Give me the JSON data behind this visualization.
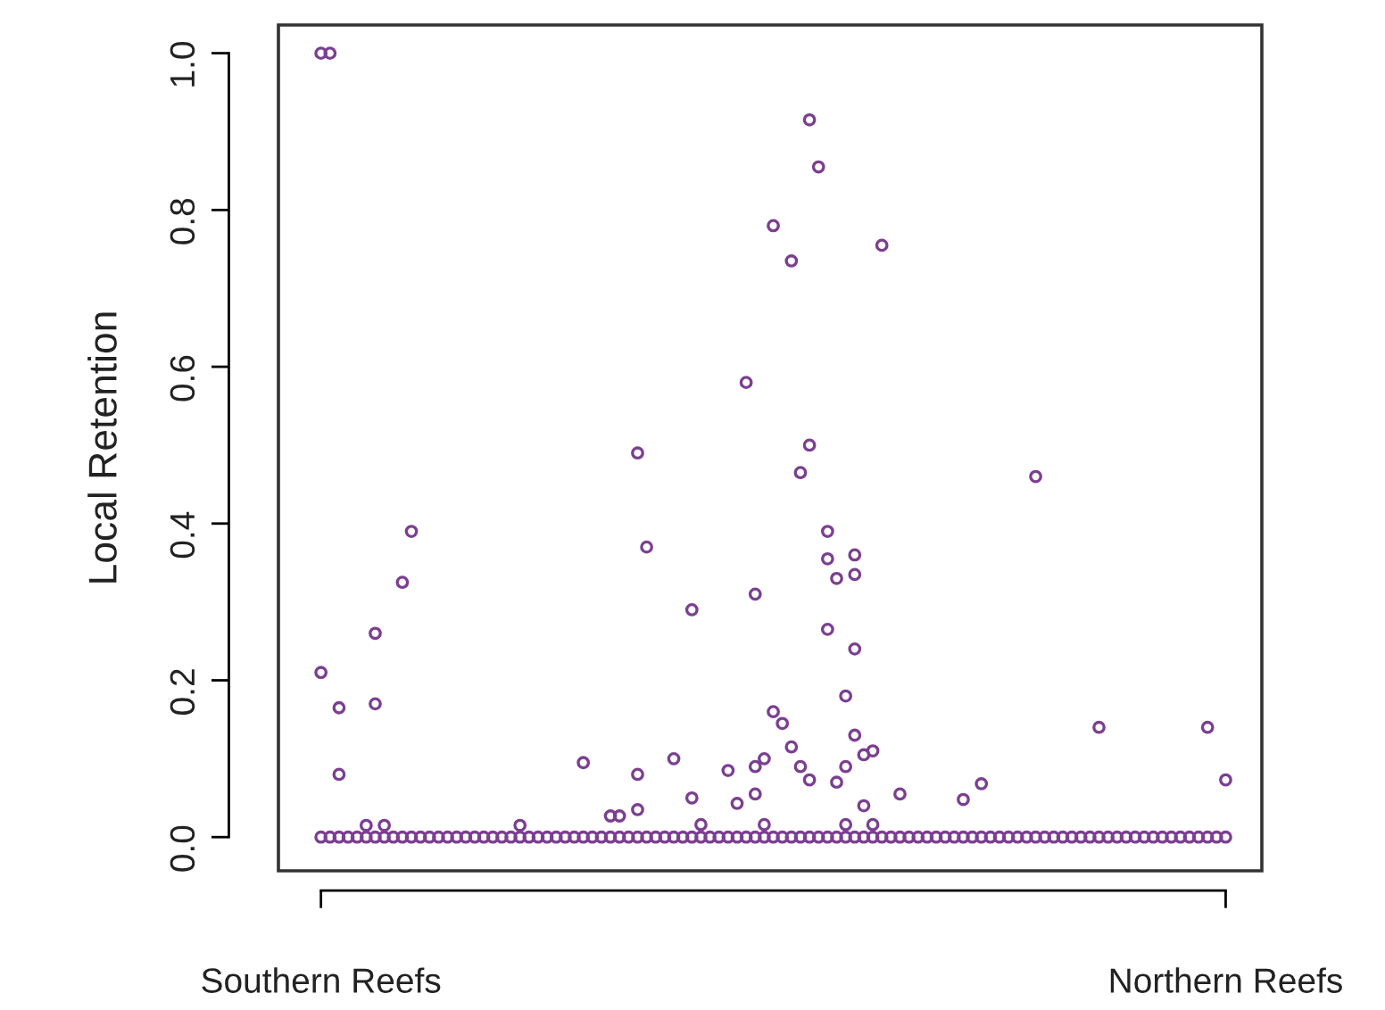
{
  "chart_data": {
    "type": "scatter",
    "ylabel": "Local Retention",
    "categories": [
      "Southern Reefs",
      null,
      null,
      null,
      null,
      null,
      null,
      null,
      null,
      null,
      null,
      null,
      null,
      null,
      null,
      null,
      null,
      null,
      null,
      null,
      null,
      null,
      null,
      null,
      null,
      null,
      null,
      null,
      null,
      null,
      null,
      null,
      null,
      null,
      null,
      null,
      null,
      null,
      null,
      null,
      null,
      null,
      null,
      null,
      null,
      null,
      null,
      null,
      null,
      null,
      null,
      null,
      null,
      null,
      null,
      null,
      null,
      null,
      null,
      null,
      null,
      null,
      null,
      null,
      null,
      null,
      null,
      null,
      null,
      null,
      null,
      null,
      null,
      null,
      null,
      null,
      null,
      null,
      null,
      null,
      null,
      null,
      null,
      null,
      null,
      null,
      null,
      null,
      null,
      null,
      null,
      null,
      null,
      null,
      null,
      null,
      null,
      null,
      null,
      null,
      "Northern Reefs"
    ],
    "ylim": [
      -0.043,
      1.036
    ],
    "yticks": [
      {
        "value": 0,
        "label": "0.0"
      },
      {
        "value": 0.2,
        "label": "0.2"
      },
      {
        "value": 0.4,
        "label": "0.4"
      },
      {
        "value": 0.6,
        "label": "0.6"
      },
      {
        "value": 0.8,
        "label": "0.8"
      },
      {
        "value": 1,
        "label": "1.0"
      }
    ],
    "marker": "circle",
    "series": [
      {
        "color": "#7b3f91",
        "values": [
          0,
          0,
          0,
          0,
          0,
          0,
          0,
          0,
          0,
          0,
          0,
          0,
          0,
          0,
          0,
          0,
          0,
          0,
          0,
          0,
          0,
          0,
          0,
          0,
          0,
          0,
          0,
          0,
          0,
          0,
          0,
          0,
          0,
          0,
          0,
          0,
          0,
          0,
          0,
          0,
          0,
          0,
          0,
          0,
          0,
          0,
          0,
          0,
          0,
          0,
          0,
          0,
          0,
          0,
          0,
          0,
          0,
          0,
          0,
          0,
          0,
          0,
          0,
          0,
          0,
          0,
          0,
          0,
          0,
          0,
          0,
          0,
          0,
          0,
          0,
          0,
          0,
          0,
          0,
          0,
          0,
          0,
          0,
          0,
          0,
          0,
          0,
          0,
          0,
          0,
          0,
          0,
          0,
          0,
          0,
          0,
          0,
          0,
          0,
          0,
          0
        ]
      },
      {
        "color": "#7b3f91",
        "values": [
          1,
          1,
          0.165,
          null,
          null,
          0.015,
          0.26,
          0.015,
          null,
          0.325,
          0.39,
          null,
          null,
          null,
          null,
          null,
          null,
          null,
          null,
          null,
          null,
          null,
          0.015,
          null,
          null,
          null,
          null,
          null,
          null,
          0.095,
          null,
          null,
          0.027,
          0.027,
          null,
          0.49,
          0.37,
          null,
          null,
          0.1,
          null,
          0.29,
          0.016,
          null,
          null,
          0.085,
          0.043,
          0.58,
          0.31,
          0.1,
          0.78,
          0.145,
          0.735,
          0.465,
          0.915,
          0.855,
          0.39,
          0.33,
          0.18,
          0.36,
          0.105,
          0.11,
          0.755,
          null,
          0.055,
          null,
          null,
          null,
          null,
          null,
          null,
          0.048,
          null,
          0.068,
          null,
          null,
          null,
          null,
          null,
          0.46,
          null,
          null,
          null,
          null,
          null,
          null,
          0.14,
          null,
          null,
          null,
          null,
          null,
          null,
          null,
          null,
          null,
          null,
          null,
          0.14,
          null,
          0.073
        ]
      },
      {
        "color": "#7b3f91",
        "values": [
          0.21,
          null,
          0.08,
          null,
          null,
          null,
          0.17,
          null,
          null,
          null,
          null,
          null,
          null,
          null,
          null,
          null,
          null,
          null,
          null,
          null,
          null,
          null,
          null,
          null,
          null,
          null,
          null,
          null,
          null,
          null,
          null,
          null,
          null,
          null,
          null,
          0.08,
          null,
          null,
          null,
          null,
          null,
          0.05,
          null,
          null,
          null,
          null,
          null,
          null,
          0.09,
          0.016,
          0.16,
          null,
          0.115,
          0.09,
          0.5,
          null,
          0.265,
          0.07,
          0.09,
          0.335,
          0.04,
          0.016,
          null,
          null,
          null,
          null,
          null,
          null,
          null,
          null,
          null,
          null,
          null,
          null,
          null,
          null,
          null,
          null,
          null,
          null,
          null,
          null,
          null,
          null,
          null,
          null,
          null,
          null,
          null,
          null,
          null,
          null,
          null,
          null,
          null,
          null,
          null,
          null,
          null,
          null,
          null
        ]
      },
      {
        "color": "#7b3f91",
        "values": [
          null,
          null,
          null,
          null,
          null,
          null,
          null,
          null,
          null,
          null,
          null,
          null,
          null,
          null,
          null,
          null,
          null,
          null,
          null,
          null,
          null,
          null,
          null,
          null,
          null,
          null,
          null,
          null,
          null,
          null,
          null,
          null,
          null,
          null,
          null,
          0.035,
          null,
          null,
          null,
          null,
          null,
          null,
          null,
          null,
          null,
          null,
          null,
          null,
          0.055,
          null,
          null,
          null,
          null,
          null,
          0.073,
          null,
          0.355,
          null,
          0.016,
          0.24,
          null,
          null,
          null,
          null,
          null,
          null,
          null,
          null,
          null,
          null,
          null,
          null,
          null,
          null,
          null,
          null,
          null,
          null,
          null,
          null,
          null,
          null,
          null,
          null,
          null,
          null,
          null,
          null,
          null,
          null,
          null,
          null,
          null,
          null,
          null,
          null,
          null,
          null,
          null,
          null,
          null
        ]
      },
      {
        "color": "#7b3f91",
        "values": [
          null,
          null,
          null,
          null,
          null,
          null,
          null,
          null,
          null,
          null,
          null,
          null,
          null,
          null,
          null,
          null,
          null,
          null,
          null,
          null,
          null,
          null,
          null,
          null,
          null,
          null,
          null,
          null,
          null,
          null,
          null,
          null,
          null,
          null,
          null,
          null,
          null,
          null,
          null,
          null,
          null,
          null,
          null,
          null,
          null,
          null,
          null,
          null,
          null,
          null,
          null,
          null,
          null,
          null,
          null,
          null,
          null,
          null,
          null,
          0.13,
          null,
          null,
          null,
          null,
          null,
          null,
          null,
          null,
          null,
          null,
          null,
          null,
          null,
          null,
          null,
          null,
          null,
          null,
          null,
          null,
          null,
          null,
          null,
          null,
          null,
          null,
          null,
          null,
          null,
          null,
          null,
          null,
          null,
          null,
          null,
          null,
          null,
          null,
          null,
          null,
          null
        ]
      }
    ]
  }
}
